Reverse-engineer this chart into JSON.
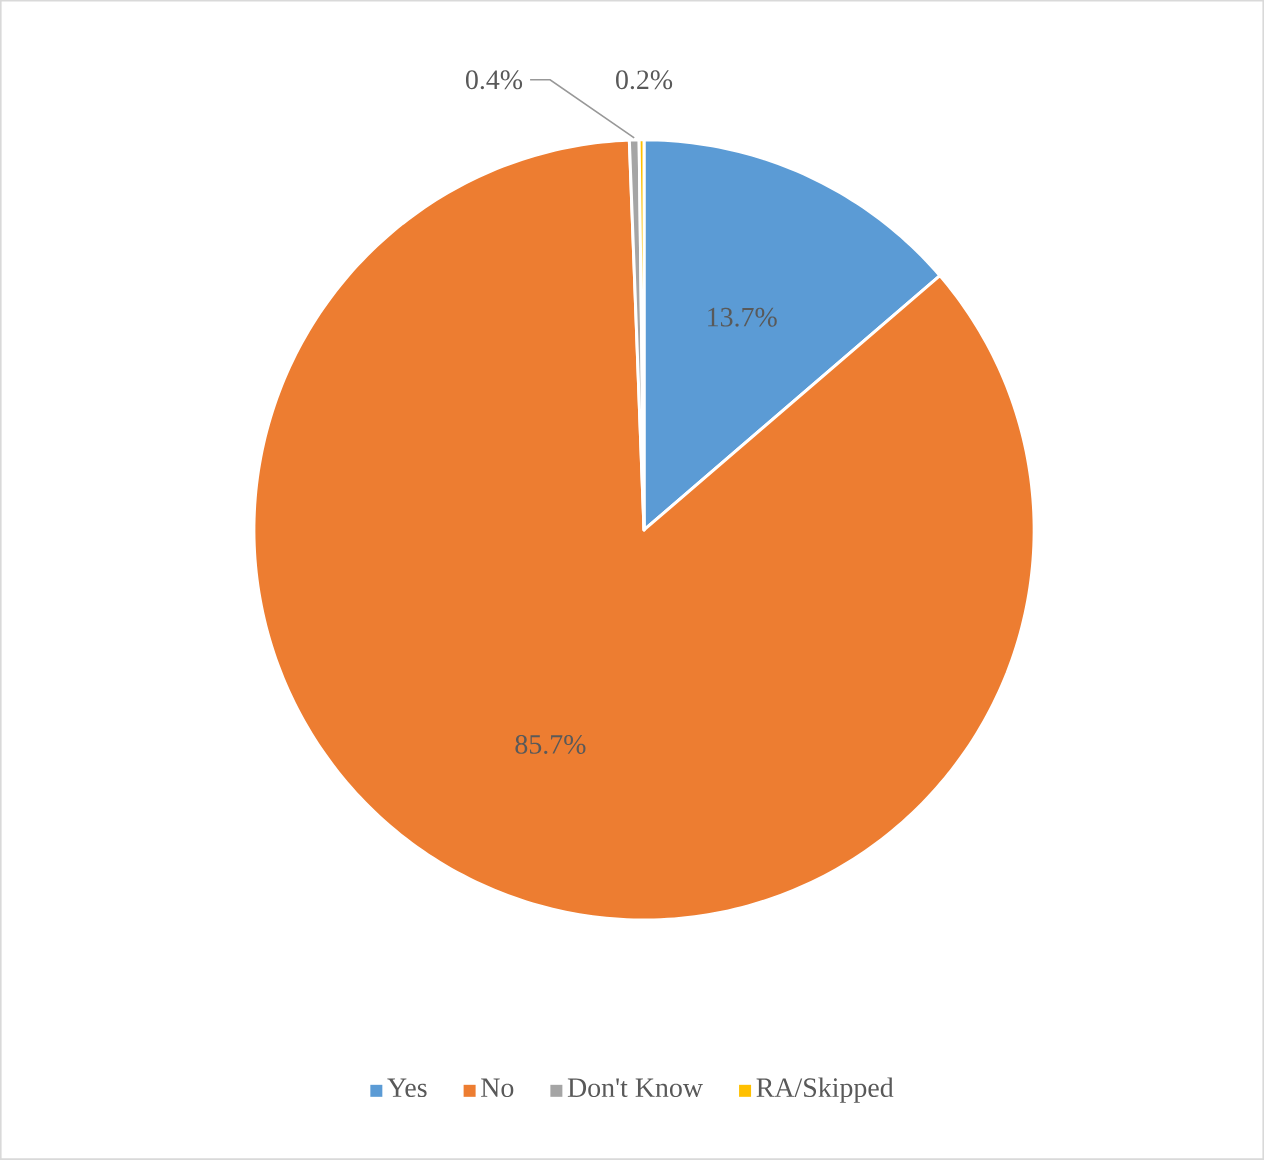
{
  "chart_data": {
    "type": "pie",
    "categories": [
      "Yes",
      "No",
      "Don't Know",
      "RA/Skipped"
    ],
    "values": [
      13.7,
      85.7,
      0.4,
      0.2
    ],
    "colors": [
      "#5b9bd5",
      "#ed7d31",
      "#a5a5a5",
      "#ffc000"
    ],
    "value_labels": [
      "13.7%",
      "85.7%",
      "0.4%",
      "0.2%"
    ],
    "legend": "bottom"
  }
}
